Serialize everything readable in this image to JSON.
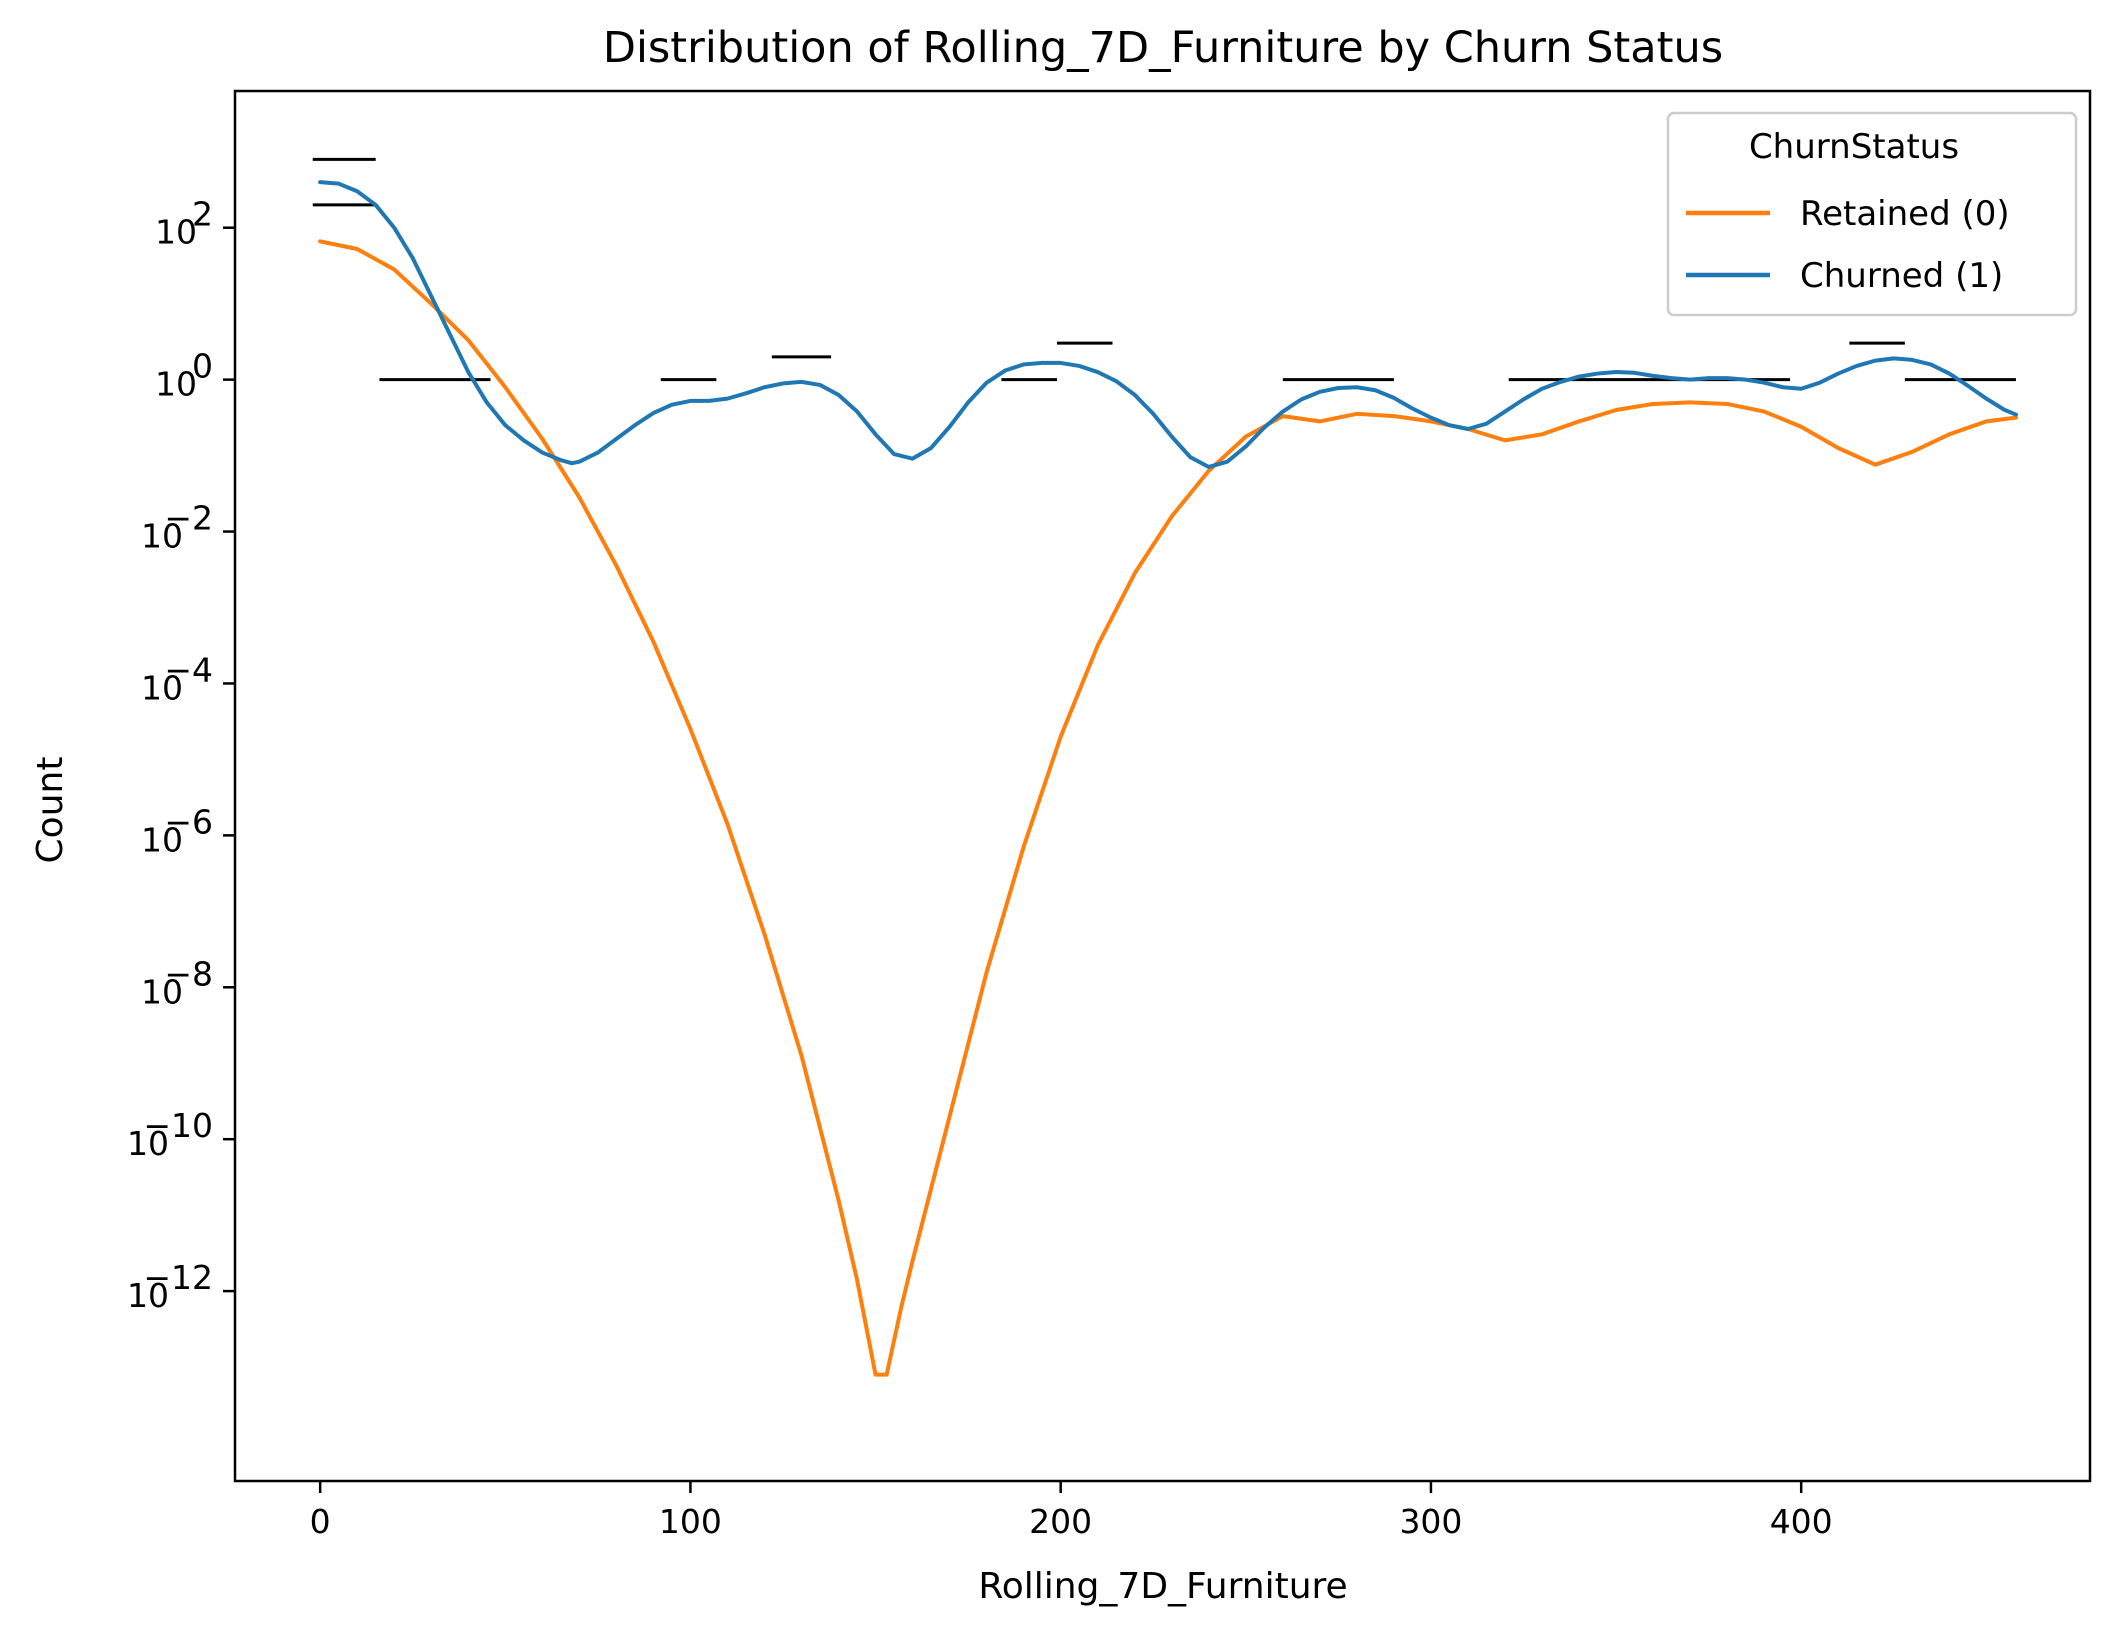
{
  "chart_data": {
    "type": "line",
    "title": "Distribution of Rolling_7D_Furniture by Churn Status",
    "xlabel": "Rolling_7D_Furniture",
    "ylabel": "Count",
    "xlim": [
      -23,
      478
    ],
    "ylim_log10": [
      -14.5,
      3.8
    ],
    "y_scale": "log",
    "grid": false,
    "x_ticks": [
      0,
      100,
      200,
      300,
      400
    ],
    "x_tick_labels": [
      "0",
      "100",
      "200",
      "300",
      "400"
    ],
    "y_ticks_exponent": [
      2,
      0,
      -2,
      -4,
      -6,
      -8,
      -10,
      -12
    ],
    "y_tick_base": "10",
    "y_tick_exponent_labels": [
      "2",
      "0",
      "−2",
      "−4",
      "−6",
      "−8",
      "−10",
      "−12"
    ],
    "legend": {
      "title": "ChurnStatus",
      "placement": "top-right",
      "entries": [
        {
          "label": "Retained (0)",
          "color": "#ff7f0e"
        },
        {
          "label": "Churned (1)",
          "color": "#1f77b4"
        }
      ]
    },
    "series": [
      {
        "name": "Retained (0)",
        "color": "#ff7f0e",
        "x": [
          0,
          10,
          20,
          30,
          40,
          50,
          60,
          70,
          80,
          90,
          100,
          110,
          120,
          130,
          140,
          145,
          150,
          153,
          157,
          160,
          170,
          180,
          190,
          200,
          210,
          220,
          230,
          240,
          250,
          260,
          270,
          280,
          290,
          300,
          310,
          320,
          330,
          340,
          350,
          360,
          370,
          380,
          390,
          400,
          410,
          420,
          430,
          440,
          450,
          458
        ],
        "log10_y": [
          1.82,
          1.72,
          1.45,
          1.0,
          0.52,
          -0.1,
          -0.78,
          -1.55,
          -2.45,
          -3.45,
          -4.6,
          -5.85,
          -7.3,
          -8.9,
          -10.8,
          -11.85,
          -13.1,
          -13.1,
          -12.2,
          -11.6,
          -9.7,
          -7.8,
          -6.15,
          -4.7,
          -3.5,
          -2.55,
          -1.8,
          -1.2,
          -0.75,
          -0.48,
          -0.55,
          -0.45,
          -0.48,
          -0.55,
          -0.65,
          -0.8,
          -0.72,
          -0.55,
          -0.4,
          -0.32,
          -0.3,
          -0.32,
          -0.42,
          -0.62,
          -0.9,
          -1.12,
          -0.95,
          -0.72,
          -0.55,
          -0.5
        ]
      },
      {
        "name": "Churned (1)",
        "color": "#1f77b4",
        "x": [
          0,
          5,
          10,
          15,
          20,
          25,
          30,
          35,
          40,
          45,
          50,
          55,
          60,
          65,
          68,
          70,
          75,
          80,
          85,
          90,
          95,
          100,
          105,
          110,
          115,
          120,
          125,
          130,
          135,
          140,
          145,
          150,
          155,
          160,
          165,
          170,
          175,
          180,
          185,
          190,
          195,
          200,
          205,
          210,
          215,
          220,
          225,
          230,
          235,
          240,
          245,
          250,
          255,
          260,
          265,
          270,
          275,
          280,
          285,
          290,
          295,
          300,
          305,
          310,
          315,
          320,
          325,
          330,
          335,
          340,
          345,
          350,
          355,
          360,
          365,
          370,
          375,
          380,
          385,
          390,
          395,
          400,
          405,
          410,
          415,
          420,
          425,
          430,
          435,
          440,
          445,
          450,
          455,
          458
        ],
        "log10_y": [
          2.6,
          2.58,
          2.48,
          2.3,
          2.0,
          1.6,
          1.1,
          0.6,
          0.1,
          -0.3,
          -0.6,
          -0.8,
          -0.96,
          -1.06,
          -1.1,
          -1.08,
          -0.96,
          -0.78,
          -0.6,
          -0.44,
          -0.33,
          -0.28,
          -0.28,
          -0.25,
          -0.18,
          -0.1,
          -0.05,
          -0.03,
          -0.07,
          -0.2,
          -0.42,
          -0.72,
          -0.98,
          -1.04,
          -0.9,
          -0.62,
          -0.3,
          -0.04,
          0.12,
          0.2,
          0.22,
          0.22,
          0.18,
          0.1,
          -0.02,
          -0.2,
          -0.45,
          -0.75,
          -1.02,
          -1.15,
          -1.08,
          -0.88,
          -0.63,
          -0.42,
          -0.26,
          -0.16,
          -0.11,
          -0.1,
          -0.14,
          -0.24,
          -0.38,
          -0.5,
          -0.6,
          -0.65,
          -0.58,
          -0.42,
          -0.26,
          -0.12,
          -0.03,
          0.04,
          0.08,
          0.1,
          0.09,
          0.05,
          0.02,
          0.0,
          0.02,
          0.02,
          0.0,
          -0.04,
          -0.1,
          -0.12,
          -0.04,
          0.08,
          0.18,
          0.25,
          0.28,
          0.26,
          0.2,
          0.08,
          -0.08,
          -0.25,
          -0.4,
          -0.46
        ]
      }
    ],
    "histogram_steps": [
      {
        "x0": -2,
        "x1": 15,
        "log10_y": 2.9
      },
      {
        "x0": -2,
        "x1": 15,
        "log10_y": 2.3
      },
      {
        "x0": 16,
        "x1": 46,
        "log10_y": 0.0
      },
      {
        "x0": 92,
        "x1": 107,
        "log10_y": 0.0
      },
      {
        "x0": 122,
        "x1": 138,
        "log10_y": 0.3
      },
      {
        "x0": 184,
        "x1": 199,
        "log10_y": 0.0
      },
      {
        "x0": 199,
        "x1": 214,
        "log10_y": 0.48
      },
      {
        "x0": 260,
        "x1": 290,
        "log10_y": 0.0
      },
      {
        "x0": 321,
        "x1": 397,
        "log10_y": 0.0
      },
      {
        "x0": 413,
        "x1": 428,
        "log10_y": 0.48
      },
      {
        "x0": 428,
        "x1": 458,
        "log10_y": 0.0
      }
    ]
  }
}
